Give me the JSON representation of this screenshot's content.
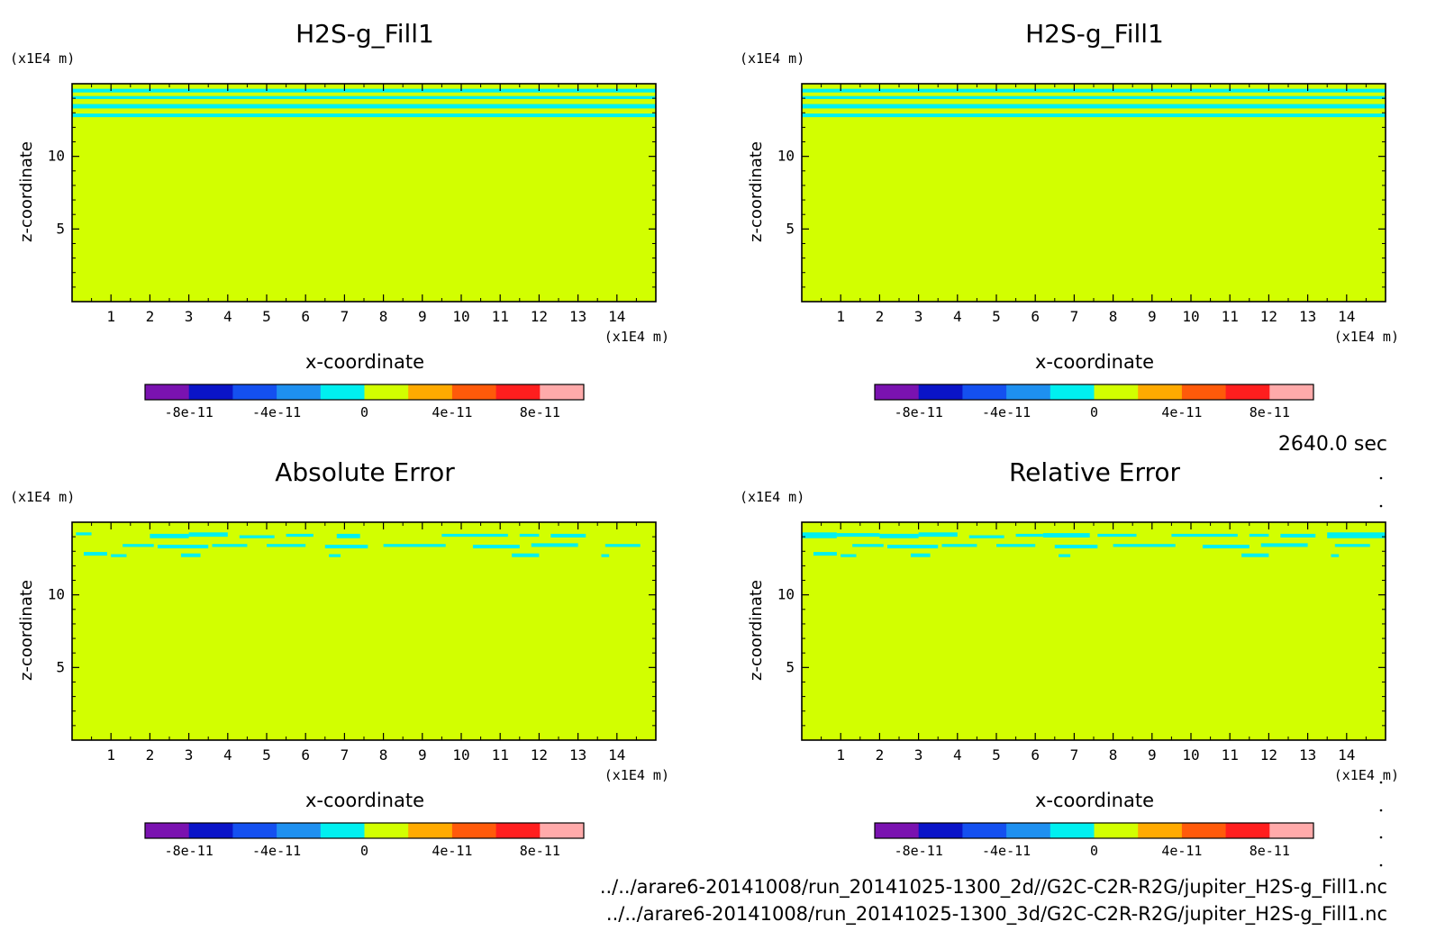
{
  "time_label": "2640.0 sec",
  "files": [
    "../../arare6-20141008/run_20141025-1300_2d//G2C-C2R-R2G/jupiter_H2S-g_Fill1.nc",
    "../../arare6-20141008/run_20141025-1300_3d/G2C-C2R-R2G/jupiter_H2S-g_Fill1.nc"
  ],
  "colorbar": {
    "colors": [
      "#7a12b0",
      "#0a14c8",
      "#1450f0",
      "#1e90f0",
      "#00f0f0",
      "#d2ff00",
      "#ffaa00",
      "#ff5a0a",
      "#ff1e1e",
      "#ffaaaa"
    ],
    "levels": [
      -1e-10,
      -8e-11,
      -6e-11,
      -4e-11,
      -2e-11,
      0,
      2e-11,
      4e-11,
      6e-11,
      8e-11,
      1e-10
    ],
    "tick_labels": [
      "-8e-11",
      "-4e-11",
      "0",
      "4e-11",
      "8e-11"
    ],
    "tick_values": [
      -8e-11,
      -4e-11,
      0,
      4e-11,
      8e-11
    ]
  },
  "chart_data": [
    {
      "type": "heatmap",
      "title": "H2S-g_Fill1",
      "xlabel": "x-coordinate",
      "ylabel": "z-coordinate",
      "x_unit": "(x1E4 m)",
      "z_unit": "(x1E4 m)",
      "xlim": [
        0,
        15
      ],
      "zlim": [
        0,
        15
      ],
      "x_ticks": [
        1,
        2,
        3,
        4,
        5,
        6,
        7,
        8,
        9,
        10,
        11,
        12,
        13,
        14
      ],
      "z_ticks": [
        5,
        10
      ],
      "background_value": "0+ (yellow-green band)",
      "bands": [
        {
          "z_range": [
            14.4,
            14.65
          ],
          "band": "cyan"
        },
        {
          "z_range": [
            13.95,
            14.15
          ],
          "band": "cyan"
        },
        {
          "z_range": [
            13.3,
            13.6
          ],
          "band": "cyan"
        },
        {
          "z_range": [
            12.7,
            12.95
          ],
          "band": "cyan"
        }
      ]
    },
    {
      "type": "heatmap",
      "title": "H2S-g_Fill1",
      "xlabel": "x-coordinate",
      "ylabel": "z-coordinate",
      "x_unit": "(x1E4 m)",
      "z_unit": "(x1E4 m)",
      "xlim": [
        0,
        15
      ],
      "zlim": [
        0,
        15
      ],
      "x_ticks": [
        1,
        2,
        3,
        4,
        5,
        6,
        7,
        8,
        9,
        10,
        11,
        12,
        13,
        14
      ],
      "z_ticks": [
        5,
        10
      ],
      "background_value": "0+ (yellow-green band)",
      "bands": [
        {
          "z_range": [
            14.4,
            14.65
          ],
          "band": "cyan"
        },
        {
          "z_range": [
            13.95,
            14.15
          ],
          "band": "cyan"
        },
        {
          "z_range": [
            13.3,
            13.6
          ],
          "band": "cyan"
        },
        {
          "z_range": [
            12.7,
            12.95
          ],
          "band": "cyan"
        }
      ]
    },
    {
      "type": "heatmap",
      "title": "Absolute Error",
      "xlabel": "x-coordinate",
      "ylabel": "z-coordinate",
      "x_unit": "(x1E4 m)",
      "z_unit": "(x1E4 m)",
      "xlim": [
        0,
        15
      ],
      "zlim": [
        0,
        15
      ],
      "x_ticks": [
        1,
        2,
        3,
        4,
        5,
        6,
        7,
        8,
        9,
        10,
        11,
        12,
        13,
        14
      ],
      "z_ticks": [
        5,
        10
      ],
      "background_value": "0+ (yellow-green band)",
      "patches": [
        [
          0.1,
          14.1,
          0.5,
          14.3
        ],
        [
          2.0,
          13.9,
          3.0,
          14.2
        ],
        [
          3.0,
          14.0,
          4.0,
          14.3
        ],
        [
          4.3,
          13.9,
          5.2,
          14.1
        ],
        [
          5.5,
          14.0,
          6.2,
          14.2
        ],
        [
          6.8,
          13.9,
          7.4,
          14.2
        ],
        [
          9.5,
          14.0,
          11.2,
          14.2
        ],
        [
          11.5,
          14.0,
          12.0,
          14.2
        ],
        [
          12.3,
          13.95,
          13.2,
          14.2
        ],
        [
          1.3,
          13.3,
          2.1,
          13.5
        ],
        [
          2.2,
          13.2,
          3.5,
          13.45
        ],
        [
          3.6,
          13.3,
          4.5,
          13.5
        ],
        [
          5.0,
          13.3,
          6.0,
          13.5
        ],
        [
          6.5,
          13.2,
          7.6,
          13.45
        ],
        [
          8.0,
          13.3,
          9.6,
          13.5
        ],
        [
          10.3,
          13.2,
          11.5,
          13.45
        ],
        [
          11.8,
          13.3,
          13.0,
          13.55
        ],
        [
          13.7,
          13.3,
          14.6,
          13.5
        ],
        [
          0.3,
          12.7,
          0.9,
          12.95
        ],
        [
          1.0,
          12.6,
          1.4,
          12.8
        ],
        [
          2.8,
          12.6,
          3.3,
          12.85
        ],
        [
          6.6,
          12.6,
          6.9,
          12.8
        ],
        [
          11.3,
          12.6,
          12.0,
          12.85
        ],
        [
          13.6,
          12.6,
          13.8,
          12.8
        ]
      ]
    },
    {
      "type": "heatmap",
      "title": "Relative Error",
      "xlabel": "x-coordinate",
      "ylabel": "z-coordinate",
      "x_unit": "(x1E4 m)",
      "z_unit": "(x1E4 m)",
      "xlim": [
        0,
        15
      ],
      "zlim": [
        0,
        15
      ],
      "x_ticks": [
        1,
        2,
        3,
        4,
        5,
        6,
        7,
        8,
        9,
        10,
        11,
        12,
        13,
        14
      ],
      "z_ticks": [
        5,
        10
      ],
      "background_value": "0+ (yellow-green band)",
      "patches": [
        [
          0.0,
          13.9,
          0.9,
          14.3
        ],
        [
          0.9,
          14.0,
          2.0,
          14.25
        ],
        [
          2.0,
          13.9,
          3.0,
          14.2
        ],
        [
          3.0,
          14.0,
          4.0,
          14.3
        ],
        [
          4.3,
          13.9,
          5.2,
          14.1
        ],
        [
          5.5,
          14.0,
          6.2,
          14.2
        ],
        [
          6.2,
          13.95,
          7.4,
          14.25
        ],
        [
          7.6,
          14.0,
          8.6,
          14.2
        ],
        [
          9.5,
          14.0,
          11.2,
          14.2
        ],
        [
          11.5,
          14.0,
          12.0,
          14.2
        ],
        [
          12.3,
          13.95,
          13.2,
          14.2
        ],
        [
          13.5,
          13.9,
          15.0,
          14.3
        ],
        [
          1.3,
          13.3,
          2.1,
          13.5
        ],
        [
          2.2,
          13.2,
          3.5,
          13.45
        ],
        [
          3.6,
          13.3,
          4.5,
          13.5
        ],
        [
          5.0,
          13.3,
          6.0,
          13.5
        ],
        [
          6.5,
          13.2,
          7.6,
          13.45
        ],
        [
          8.0,
          13.3,
          9.6,
          13.5
        ],
        [
          10.3,
          13.2,
          11.5,
          13.45
        ],
        [
          11.8,
          13.3,
          13.0,
          13.55
        ],
        [
          13.7,
          13.3,
          14.6,
          13.5
        ],
        [
          0.3,
          12.7,
          0.9,
          12.95
        ],
        [
          1.0,
          12.6,
          1.4,
          12.8
        ],
        [
          2.8,
          12.6,
          3.3,
          12.85
        ],
        [
          6.6,
          12.6,
          6.9,
          12.8
        ],
        [
          11.3,
          12.6,
          12.0,
          12.85
        ],
        [
          13.6,
          12.6,
          13.8,
          12.8
        ]
      ]
    }
  ]
}
